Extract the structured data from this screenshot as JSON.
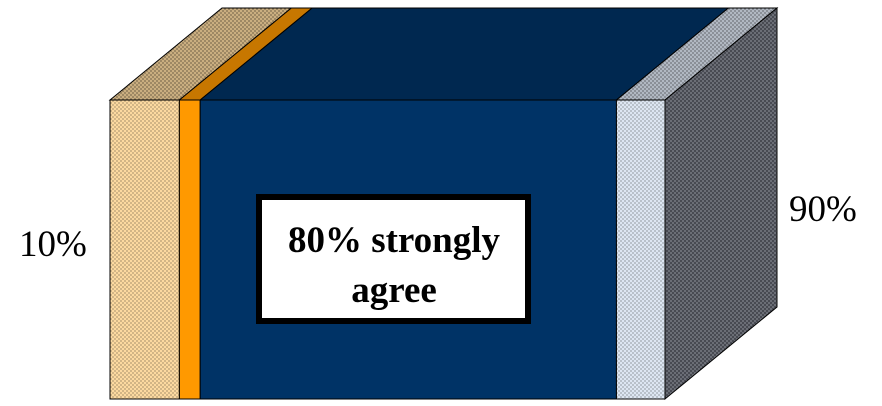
{
  "chart_data": {
    "type": "bar",
    "orientation": "horizontal-stacked-3d",
    "series": [
      {
        "value": 10,
        "color": "#FCD9A0",
        "pattern": "dotted"
      },
      {
        "value": 3,
        "color": "#FF9900"
      },
      {
        "value": 60,
        "color": "#003366"
      },
      {
        "value": 7,
        "color": "#DDE6F2",
        "pattern": "dotted"
      }
    ],
    "labels": {
      "left": "10%",
      "right": "90%",
      "callout_line1": "80% strongly",
      "callout_line2": "agree"
    },
    "colors": {
      "background": "#FFFFFF",
      "outline": "#000000",
      "side_face": "#6B6E76",
      "side_dot": "#2E3138"
    }
  }
}
